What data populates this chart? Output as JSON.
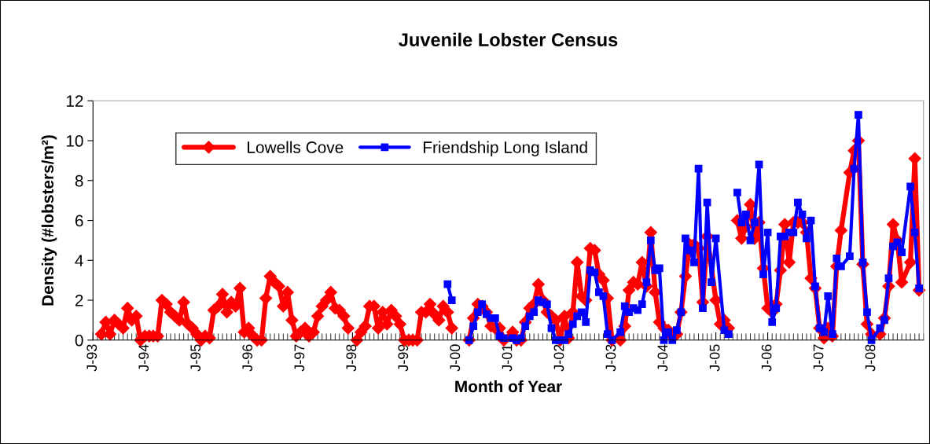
{
  "chart_data": {
    "type": "line",
    "title": "Juvenile Lobster Census",
    "xlabel": "Month of Year",
    "ylabel": "Density (#lobsters/m²)",
    "xlim": [
      "1993-01",
      "2009-01"
    ],
    "xticks": [
      {
        "value": "1993-01",
        "label": "J-93"
      },
      {
        "value": "1994-01",
        "label": "J-94"
      },
      {
        "value": "1995-01",
        "label": "J-95"
      },
      {
        "value": "1996-01",
        "label": "J-96"
      },
      {
        "value": "1997-01",
        "label": "J-97"
      },
      {
        "value": "1998-01",
        "label": "J-98"
      },
      {
        "value": "1999-01",
        "label": "J-99"
      },
      {
        "value": "2000-01",
        "label": "J-00"
      },
      {
        "value": "2001-01",
        "label": "J-01"
      },
      {
        "value": "2002-01",
        "label": "J-02"
      },
      {
        "value": "2003-01",
        "label": "J-03"
      },
      {
        "value": "2004-01",
        "label": "J-04"
      },
      {
        "value": "2005-01",
        "label": "J-05"
      },
      {
        "value": "2006-01",
        "label": "J-06"
      },
      {
        "value": "2007-01",
        "label": "J-07"
      },
      {
        "value": "2008-01",
        "label": "J-08"
      }
    ],
    "ylim": [
      0,
      12
    ],
    "yticks": [
      0,
      2,
      4,
      6,
      8,
      10,
      12
    ],
    "grid": false,
    "legend": "top left",
    "line_style": "solid",
    "series": [
      {
        "name": "Lowells Cove",
        "color": "#ff0000",
        "marker": "diamond",
        "x": [
          "1993-03",
          "1993-04",
          "1993-05",
          "1993-06",
          "1993-07",
          "1993-08",
          "1993-09",
          "1993-10",
          "1993-11",
          "1993-12",
          "1994-01",
          "1994-02",
          "1994-03",
          "1994-04",
          "1994-05",
          "1994-06",
          "1994-07",
          "1994-08",
          "1994-09",
          "1994-10",
          "1994-11",
          "1994-12",
          "1995-01",
          "1995-02",
          "1995-03",
          "1995-04",
          "1995-05",
          "1995-06",
          "1995-07",
          "1995-08",
          "1995-09",
          "1995-10",
          "1995-11",
          "1995-12",
          "1996-01",
          "1996-02",
          "1996-03",
          "1996-04",
          "1996-05",
          "1996-06",
          "1996-07",
          "1996-08",
          "1996-09",
          "1996-10",
          "1996-11",
          "1996-12",
          "1997-01",
          "1997-02",
          "1997-03",
          "1997-04",
          "1997-05",
          "1997-06",
          "1997-07",
          "1997-08",
          "1997-09",
          "1997-10",
          "1997-11",
          "1997-12",
          "1998-01",
          "1998-02",
          "1998-03",
          "1998-04",
          "1998-05",
          "1998-06",
          "1998-07",
          "1998-08",
          "1998-09",
          "1998-10",
          "1998-11",
          "1998-12",
          "1999-01",
          "1999-02",
          "1999-03",
          "1999-04",
          "1999-05",
          "1999-06",
          "1999-07",
          "1999-08",
          "1999-09",
          "1999-10",
          "1999-11",
          "1999-12",
          "2000-01",
          "2000-04",
          "2000-05",
          "2000-06",
          "2000-07",
          "2000-08",
          "2000-09",
          "2000-10",
          "2000-11",
          "2000-12",
          "2001-02",
          "2001-03",
          "2001-04",
          "2001-05",
          "2001-06",
          "2001-07",
          "2001-08",
          "2001-09",
          "2001-10",
          "2001-11",
          "2001-12",
          "2002-01",
          "2002-02",
          "2002-03",
          "2002-04",
          "2002-05",
          "2002-06",
          "2002-07",
          "2002-08",
          "2002-09",
          "2002-10",
          "2002-11",
          "2002-12",
          "2003-01",
          "2003-03",
          "2003-04",
          "2003-05",
          "2003-06",
          "2003-07",
          "2003-08",
          "2003-09",
          "2003-10",
          "2003-11",
          "2003-12",
          "2004-01",
          "2004-02",
          "2004-03",
          "2004-04",
          "2004-05",
          "2004-06",
          "2004-07",
          "2004-08",
          "2004-09",
          "2004-10",
          "2004-11",
          "2005-01",
          "2005-02",
          "2005-03",
          "2005-04",
          "2005-05",
          "2005-06",
          "2005-07",
          "2005-08",
          "2005-09",
          "2005-10",
          "2005-11",
          "2005-12",
          "2006-01",
          "2006-02",
          "2006-03",
          "2006-04",
          "2006-05",
          "2006-06",
          "2006-07",
          "2006-08",
          "2006-09",
          "2006-10",
          "2006-11",
          "2006-12",
          "2007-01",
          "2007-02",
          "2007-03",
          "2007-04",
          "2007-05",
          "2007-06",
          "2007-08",
          "2007-09",
          "2007-10",
          "2007-11",
          "2007-12",
          "2008-01",
          "2008-03",
          "2008-04",
          "2008-05",
          "2008-06",
          "2008-07",
          "2008-08",
          "2008-10",
          "2008-11",
          "2008-12"
        ],
        "values": [
          0.3,
          0.9,
          0.3,
          1.0,
          0.8,
          0.6,
          1.6,
          1.0,
          1.2,
          0,
          0.2,
          0.2,
          0.2,
          0.2,
          2.0,
          1.8,
          1.4,
          1.2,
          1.0,
          1.9,
          0.8,
          0.6,
          0.3,
          0,
          0.2,
          0.1,
          1.5,
          1.7,
          2.3,
          1.4,
          1.9,
          1.7,
          2.6,
          0.4,
          0.6,
          0.2,
          0,
          0,
          2.1,
          3.2,
          2.9,
          2.7,
          1.7,
          2.4,
          1.0,
          0.2,
          0.4,
          0.6,
          0.2,
          0.4,
          1.2,
          1.7,
          2.0,
          2.4,
          1.6,
          1.5,
          1.2,
          0.6,
          null,
          0,
          0.4,
          0.7,
          1.7,
          1.7,
          0.6,
          1.4,
          0.8,
          1.5,
          1.2,
          0.8,
          0,
          0,
          0,
          0,
          1.4,
          1.4,
          1.8,
          1.3,
          1.0,
          1.7,
          1.4,
          0.6,
          null,
          0,
          1.1,
          1.8,
          1.7,
          1.4,
          0.7,
          0.6,
          0.6,
          0,
          0.4,
          0,
          0,
          0.9,
          1.6,
          1.8,
          2.8,
          2.0,
          1.4,
          1.2,
          1.0,
          0,
          1.2,
          0.1,
          1.4,
          3.9,
          2.2,
          2.0,
          4.6,
          4.5,
          3.3,
          3.0,
          2.1,
          0,
          0,
          0.7,
          2.5,
          2.9,
          2.8,
          3.9,
          2.7,
          5.4,
          2.4,
          0.9,
          0.6,
          0.5,
          0.2,
          0.3,
          1.4,
          3.2,
          4.8,
          4.8,
          4.6,
          1.9,
          5.2,
          2.0,
          0.8,
          1.0,
          0.6,
          null,
          6.0,
          5.1,
          5.7,
          6.8,
          5.1,
          5.9,
          3.6,
          1.6,
          1.4,
          1.8,
          3.5,
          5.8,
          3.9,
          5.9,
          5.9,
          5.9,
          5.4,
          3.1,
          2.6,
          0.6,
          0.1,
          0.6,
          0.2,
          3.7,
          5.5,
          8.4,
          9.5,
          10.0,
          3.8,
          0.8,
          0.3,
          0.3,
          1.1,
          2.7,
          5.8,
          5.0,
          2.9,
          3.9,
          9.1,
          2.5
        ]
      },
      {
        "name": "Friendship Long Island",
        "color": "#0000ff",
        "marker": "square",
        "x": [
          "1999-11",
          "1999-12",
          "2000-01",
          "2000-04",
          "2000-05",
          "2000-06",
          "2000-07",
          "2000-08",
          "2000-09",
          "2000-10",
          "2000-11",
          "2000-12",
          "2001-02",
          "2001-03",
          "2001-04",
          "2001-05",
          "2001-06",
          "2001-07",
          "2001-08",
          "2001-09",
          "2001-10",
          "2001-11",
          "2001-12",
          "2002-01",
          "2002-02",
          "2002-03",
          "2002-04",
          "2002-05",
          "2002-06",
          "2002-07",
          "2002-08",
          "2002-09",
          "2002-10",
          "2002-11",
          "2002-12",
          "2003-01",
          "2003-03",
          "2003-04",
          "2003-05",
          "2003-06",
          "2003-07",
          "2003-08",
          "2003-09",
          "2003-10",
          "2003-11",
          "2003-12",
          "2004-01",
          "2004-02",
          "2004-03",
          "2004-04",
          "2004-05",
          "2004-06",
          "2004-07",
          "2004-08",
          "2004-09",
          "2004-10",
          "2004-11",
          "2004-12",
          "2005-01",
          "2005-03",
          "2005-04",
          "2005-05",
          "2005-06",
          "2005-07",
          "2005-08",
          "2005-09",
          "2005-10",
          "2005-11",
          "2005-12",
          "2006-01",
          "2006-02",
          "2006-03",
          "2006-04",
          "2006-05",
          "2006-06",
          "2006-07",
          "2006-08",
          "2006-09",
          "2006-10",
          "2006-11",
          "2006-12",
          "2007-01",
          "2007-02",
          "2007-03",
          "2007-04",
          "2007-05",
          "2007-06",
          "2007-08",
          "2007-09",
          "2007-10",
          "2007-11",
          "2007-12",
          "2008-01",
          "2008-03",
          "2008-04",
          "2008-05",
          "2008-06",
          "2008-07",
          "2008-08",
          "2008-10",
          "2008-11",
          "2008-12"
        ],
        "values": [
          2.8,
          2.0,
          null,
          0,
          0.7,
          1.4,
          1.8,
          1.3,
          1.1,
          1.1,
          0.2,
          0.1,
          0.1,
          0,
          0.1,
          0.7,
          1.2,
          1.4,
          2.0,
          1.9,
          1.8,
          0.6,
          0,
          0,
          0,
          0.3,
          0.8,
          1.2,
          1.4,
          0.9,
          3.5,
          3.4,
          2.4,
          2.2,
          0.3,
          0,
          0.4,
          1.7,
          1.4,
          1.6,
          1.5,
          1.8,
          2.9,
          5.0,
          3.5,
          3.6,
          0,
          0.4,
          0,
          0.5,
          1.4,
          5.1,
          4.5,
          3.9,
          8.6,
          1.6,
          6.9,
          2.9,
          5.1,
          0.5,
          0.3,
          null,
          7.4,
          5.9,
          6.3,
          5.0,
          5.9,
          8.8,
          3.3,
          5.4,
          0.9,
          1.6,
          5.2,
          5.2,
          5.4,
          5.4,
          6.9,
          6.3,
          5.1,
          6.0,
          2.7,
          0.6,
          0.4,
          2.2,
          0.3,
          4.1,
          3.7,
          4.2,
          8.6,
          11.3,
          3.9,
          1.4,
          0,
          0.6,
          1.0,
          3.1,
          4.7,
          4.9,
          4.4,
          7.7,
          5.4,
          2.6
        ]
      }
    ]
  }
}
